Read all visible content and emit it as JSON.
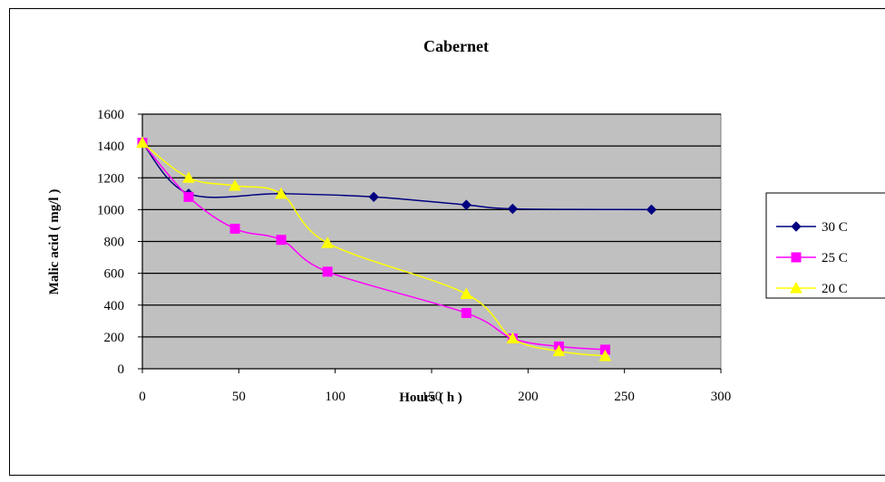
{
  "chart_data": {
    "type": "line",
    "title": "Cabernet",
    "xlabel": "Hours ( h )",
    "ylabel": "Malic acid  ( mg/l )",
    "xlim": [
      0,
      300
    ],
    "ylim": [
      0,
      1600
    ],
    "xticks": [
      0,
      50,
      100,
      150,
      200,
      250,
      300
    ],
    "yticks": [
      0,
      200,
      400,
      600,
      800,
      1000,
      1200,
      1400,
      1600
    ],
    "grid": "horizontal",
    "legend": "right",
    "plot_background": "#c0c0c0",
    "series": [
      {
        "name": "30 C",
        "color": "#000080",
        "marker": "diamond",
        "x": [
          0,
          24,
          72,
          120,
          168,
          192,
          264
        ],
        "y": [
          1420,
          1100,
          1100,
          1080,
          1030,
          1005,
          1000
        ]
      },
      {
        "name": "25 C",
        "color": "#ff00ff",
        "marker": "square",
        "x": [
          0,
          24,
          48,
          72,
          96,
          168,
          192,
          216,
          240
        ],
        "y": [
          1420,
          1080,
          880,
          810,
          610,
          350,
          190,
          140,
          120
        ]
      },
      {
        "name": "20 C",
        "color": "#ffff00",
        "marker": "triangle",
        "x": [
          0,
          24,
          48,
          72,
          96,
          168,
          192,
          216,
          240
        ],
        "y": [
          1420,
          1200,
          1150,
          1100,
          790,
          470,
          190,
          110,
          80
        ]
      }
    ]
  }
}
